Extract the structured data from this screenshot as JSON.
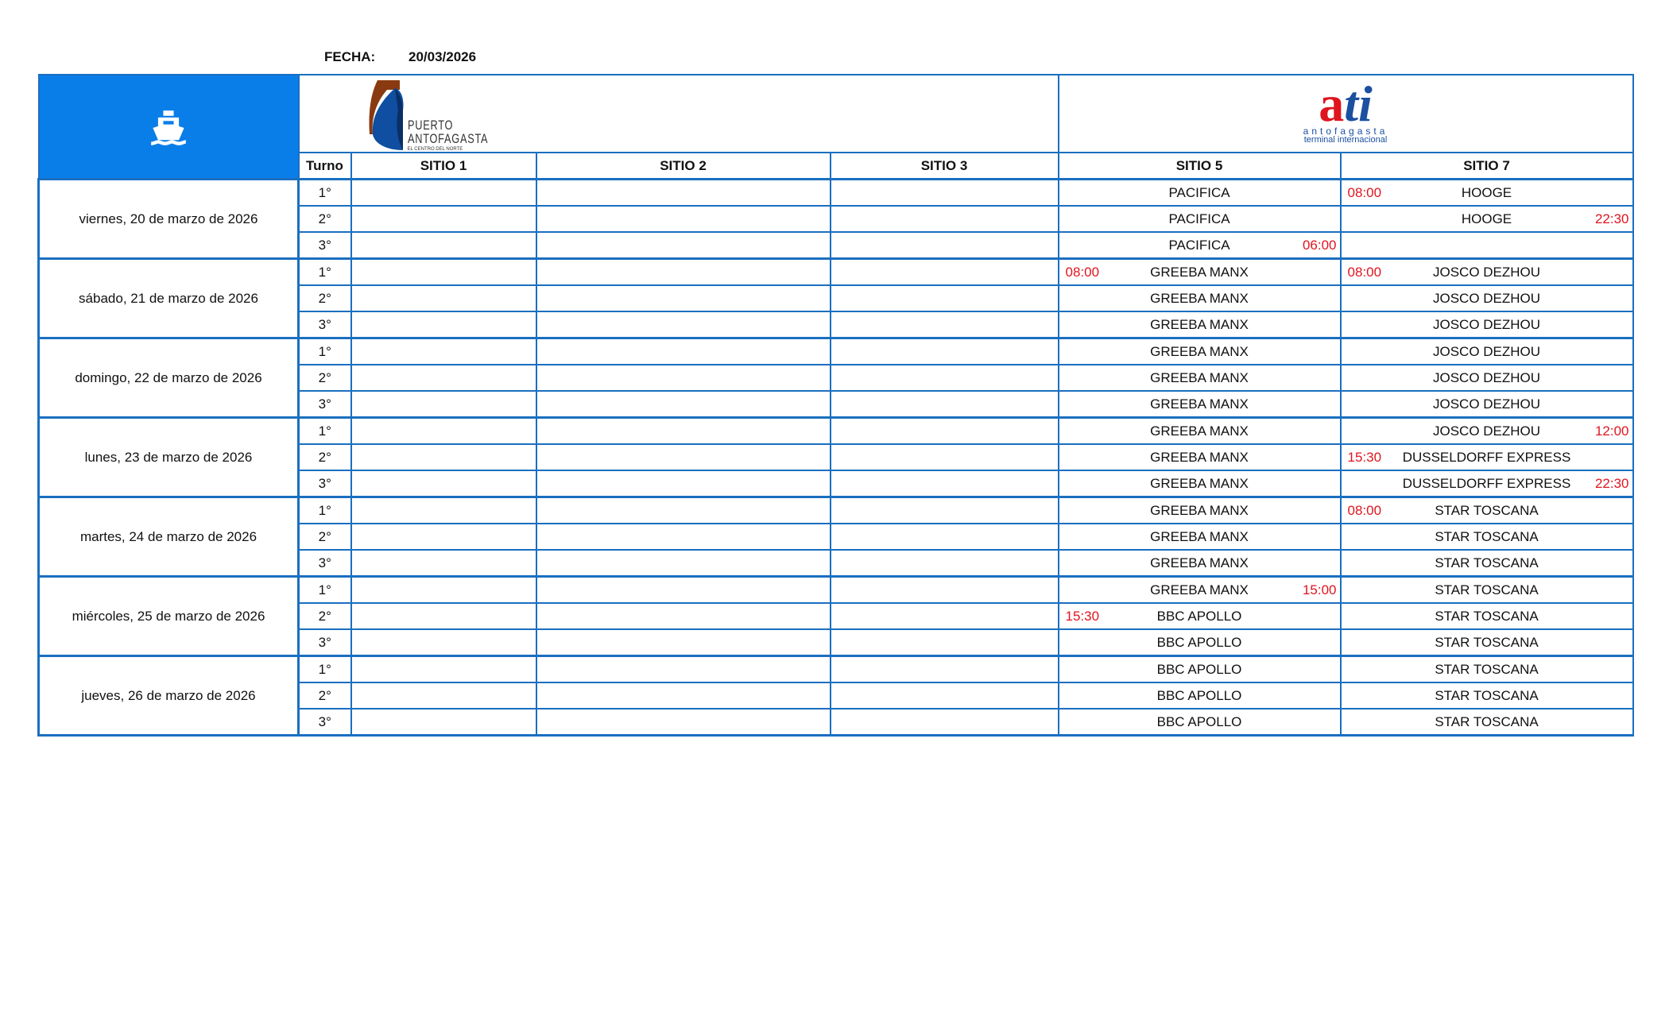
{
  "header": {
    "fecha_label": "FECHA:",
    "fecha_value": "20/03/2026"
  },
  "logos": {
    "puerto": {
      "line1": "PUERTO",
      "line2": "ANTOFAGASTA",
      "tagline": "EL CENTRO DEL NORTE"
    },
    "ati": {
      "mark_a": "a",
      "mark_ti": "ti",
      "line1": "antofagasta",
      "line2": "terminal internacional"
    }
  },
  "colors": {
    "header_blue": "#0a7ee8",
    "border": "#1a6fc0",
    "time_red": "#e0141e",
    "ati_red": "#e0141e",
    "ati_blue": "#1b4fa0"
  },
  "ship_icon": "ship-icon",
  "columns": {
    "turno": "Turno",
    "s1": "SITIO 1",
    "s2": "SITIO 2",
    "s3": "SITIO 3",
    "s5": "SITIO 5",
    "s7": "SITIO 7"
  },
  "days": [
    {
      "date": "viernes, 20 de marzo de 2026",
      "turns": [
        {
          "turno": "1°",
          "s5": {
            "name": "PACIFICA"
          },
          "s7": {
            "left": "08:00",
            "name": "HOOGE"
          }
        },
        {
          "turno": "2°",
          "s5": {
            "name": "PACIFICA"
          },
          "s7": {
            "name": "HOOGE",
            "right": "22:30"
          }
        },
        {
          "turno": "3°",
          "s5": {
            "name": "PACIFICA",
            "right": "06:00"
          },
          "s7": {}
        }
      ]
    },
    {
      "date": "sábado, 21 de marzo de 2026",
      "turns": [
        {
          "turno": "1°",
          "s5": {
            "left": "08:00",
            "name": "GREEBA MANX"
          },
          "s7": {
            "left": "08:00",
            "name": "JOSCO DEZHOU"
          }
        },
        {
          "turno": "2°",
          "s5": {
            "name": "GREEBA MANX"
          },
          "s7": {
            "name": "JOSCO DEZHOU"
          }
        },
        {
          "turno": "3°",
          "s5": {
            "name": "GREEBA MANX"
          },
          "s7": {
            "name": "JOSCO DEZHOU"
          }
        }
      ]
    },
    {
      "date": "domingo, 22 de marzo de 2026",
      "turns": [
        {
          "turno": "1°",
          "s5": {
            "name": "GREEBA MANX"
          },
          "s7": {
            "name": "JOSCO DEZHOU"
          }
        },
        {
          "turno": "2°",
          "s5": {
            "name": "GREEBA MANX"
          },
          "s7": {
            "name": "JOSCO DEZHOU"
          }
        },
        {
          "turno": "3°",
          "s5": {
            "name": "GREEBA MANX"
          },
          "s7": {
            "name": "JOSCO DEZHOU"
          }
        }
      ]
    },
    {
      "date": "lunes, 23 de marzo de 2026",
      "turns": [
        {
          "turno": "1°",
          "s5": {
            "name": "GREEBA MANX"
          },
          "s7": {
            "name": "JOSCO DEZHOU",
            "right": "12:00"
          }
        },
        {
          "turno": "2°",
          "s5": {
            "name": "GREEBA MANX"
          },
          "s7": {
            "left": "15:30",
            "name": "DUSSELDORFF EXPRESS"
          }
        },
        {
          "turno": "3°",
          "s5": {
            "name": "GREEBA MANX"
          },
          "s7": {
            "name": "DUSSELDORFF EXPRESS",
            "right": "22:30"
          }
        }
      ]
    },
    {
      "date": "martes, 24 de marzo de 2026",
      "turns": [
        {
          "turno": "1°",
          "s5": {
            "name": "GREEBA MANX"
          },
          "s7": {
            "left": "08:00",
            "name": "STAR TOSCANA"
          }
        },
        {
          "turno": "2°",
          "s5": {
            "name": "GREEBA MANX"
          },
          "s7": {
            "name": "STAR TOSCANA"
          }
        },
        {
          "turno": "3°",
          "s5": {
            "name": "GREEBA MANX"
          },
          "s7": {
            "name": "STAR TOSCANA"
          }
        }
      ]
    },
    {
      "date": "miércoles, 25 de marzo de 2026",
      "turns": [
        {
          "turno": "1°",
          "s5": {
            "name": "GREEBA MANX",
            "right": "15:00"
          },
          "s7": {
            "name": "STAR TOSCANA"
          }
        },
        {
          "turno": "2°",
          "s5": {
            "left": "15:30",
            "name": "BBC APOLLO"
          },
          "s7": {
            "name": "STAR TOSCANA"
          }
        },
        {
          "turno": "3°",
          "s5": {
            "name": "BBC APOLLO"
          },
          "s7": {
            "name": "STAR TOSCANA"
          }
        }
      ]
    },
    {
      "date": "jueves, 26 de marzo de 2026",
      "turns": [
        {
          "turno": "1°",
          "s5": {
            "name": "BBC APOLLO"
          },
          "s7": {
            "name": "STAR TOSCANA"
          }
        },
        {
          "turno": "2°",
          "s5": {
            "name": "BBC APOLLO"
          },
          "s7": {
            "name": "STAR TOSCANA"
          }
        },
        {
          "turno": "3°",
          "s5": {
            "name": "BBC APOLLO"
          },
          "s7": {
            "name": "STAR TOSCANA"
          }
        }
      ]
    }
  ]
}
